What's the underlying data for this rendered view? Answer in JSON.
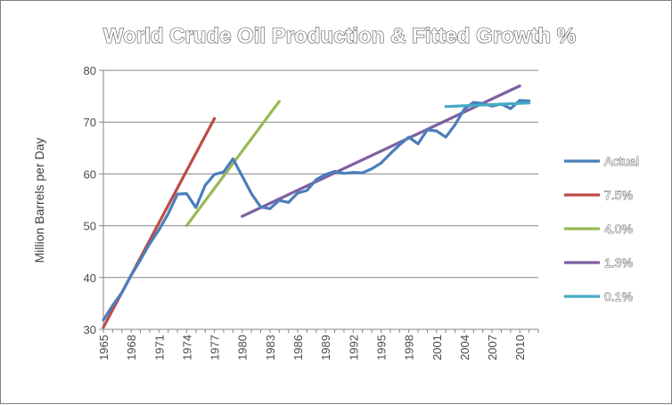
{
  "chart_data": {
    "type": "line",
    "title": "World Crude Oil Production & Fitted Growth %",
    "xlabel": "",
    "ylabel": "Million Barrels per Day",
    "xlim": [
      1965,
      2012
    ],
    "ylim": [
      30,
      80
    ],
    "y_ticks": [
      30,
      40,
      50,
      60,
      70,
      80
    ],
    "x_ticks": [
      1965,
      1968,
      1971,
      1974,
      1977,
      1980,
      1983,
      1986,
      1989,
      1992,
      1995,
      1998,
      2001,
      2004,
      2007,
      2010
    ],
    "grid": "horizontal",
    "legend": "right",
    "series": [
      {
        "name": "Actual",
        "color": "#4a7ebb",
        "x": [
          1965,
          1966,
          1967,
          1968,
          1969,
          1970,
          1971,
          1972,
          1973,
          1974,
          1975,
          1976,
          1977,
          1978,
          1979,
          1980,
          1981,
          1982,
          1983,
          1984,
          1985,
          1986,
          1987,
          1988,
          1989,
          1990,
          1991,
          1992,
          1993,
          1994,
          1995,
          1996,
          1997,
          1998,
          1999,
          2000,
          2001,
          2002,
          2003,
          2004,
          2005,
          2006,
          2007,
          2008,
          2009,
          2010,
          2011
        ],
        "values": [
          31.8,
          34.6,
          37.1,
          40.4,
          43.4,
          46.5,
          49.2,
          52.3,
          56.1,
          56.2,
          53.5,
          57.8,
          59.9,
          60.4,
          62.9,
          59.6,
          56.2,
          53.6,
          53.3,
          54.9,
          54.5,
          56.3,
          56.8,
          58.9,
          59.9,
          60.5,
          60.1,
          60.3,
          60.2,
          61.0,
          62.1,
          63.9,
          65.6,
          67.1,
          65.8,
          68.5,
          68.3,
          67.1,
          69.5,
          72.5,
          73.8,
          73.6,
          73.1,
          73.5,
          72.6,
          74.2,
          74.1
        ]
      },
      {
        "name": "7.5%",
        "color": "#be4b48",
        "x": [
          1965,
          1977
        ],
        "values": [
          30.4,
          70.7
        ]
      },
      {
        "name": "4.0%",
        "color": "#98b954",
        "x": [
          1974,
          1984
        ],
        "values": [
          50.0,
          74.0
        ]
      },
      {
        "name": "1.3%",
        "color": "#7d60a0",
        "x": [
          1980,
          2010
        ],
        "values": [
          51.8,
          77.0
        ]
      },
      {
        "name": "0.1%",
        "color": "#46aac5",
        "x": [
          2002,
          2011
        ],
        "values": [
          73.0,
          73.7
        ]
      }
    ]
  }
}
